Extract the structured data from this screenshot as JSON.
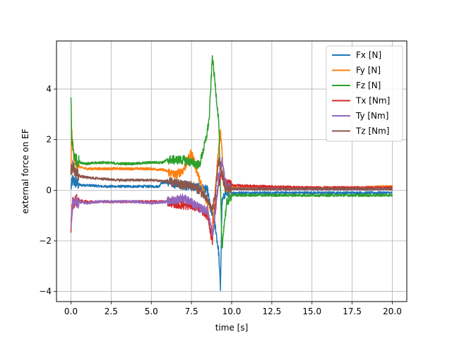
{
  "chart_data": {
    "type": "line",
    "xlabel": "time [s]",
    "ylabel": "external force on EF",
    "xlim": [
      -0.9,
      20.9
    ],
    "ylim": [
      -4.4,
      5.9
    ],
    "xticks": [
      0.0,
      2.5,
      5.0,
      7.5,
      10.0,
      12.5,
      15.0,
      17.5,
      20.0
    ],
    "xtick_labels": [
      "0.0",
      "2.5",
      "5.0",
      "7.5",
      "10.0",
      "12.5",
      "15.0",
      "17.5",
      "20.0"
    ],
    "yticks": [
      -4,
      -2,
      0,
      2,
      4
    ],
    "ytick_labels": [
      "−4",
      "−2",
      "0",
      "2",
      "4"
    ],
    "grid": true,
    "legend_position": "top-right",
    "series": [
      {
        "name": "Fx [N]",
        "color": "#1f77b4",
        "x": [
          0,
          0.1,
          0.3,
          0.6,
          1.0,
          2.0,
          3.0,
          4.0,
          5.0,
          5.5,
          5.6,
          6.0,
          7.0,
          8.0,
          8.5,
          8.7,
          9.0,
          9.2,
          9.3,
          9.4,
          9.6,
          10.0,
          12.0,
          15.0,
          18.0,
          20.0
        ],
        "y": [
          0.1,
          0.4,
          0.3,
          0.2,
          0.2,
          0.15,
          0.15,
          0.15,
          0.15,
          0.15,
          0.3,
          0.3,
          0.2,
          0.1,
          0.0,
          -0.8,
          -1.5,
          -2.5,
          -3.9,
          -0.5,
          -0.1,
          -0.1,
          -0.1,
          -0.1,
          -0.1,
          -0.1
        ]
      },
      {
        "name": "Fy [N]",
        "color": "#ff7f0e",
        "x": [
          0,
          0.05,
          0.1,
          0.2,
          0.4,
          0.6,
          1.0,
          2.0,
          3.0,
          4.0,
          5.0,
          5.8,
          6.5,
          7.0,
          7.5,
          8.0,
          8.5,
          8.7,
          8.9,
          9.1,
          9.3,
          9.4,
          9.5,
          9.7,
          10.0,
          12.0,
          15.0,
          18.0,
          20.0
        ],
        "y": [
          0.7,
          2.5,
          1.8,
          1.3,
          1.0,
          0.9,
          0.85,
          0.85,
          0.85,
          0.85,
          0.85,
          0.8,
          0.6,
          0.8,
          1.5,
          0.4,
          -0.5,
          -1.8,
          -0.8,
          1.0,
          2.3,
          1.5,
          0.3,
          0.1,
          0.1,
          0.1,
          0.1,
          0.1,
          0.15
        ]
      },
      {
        "name": "Fz [N]",
        "color": "#2ca02c",
        "x": [
          0,
          0.05,
          0.15,
          0.3,
          0.6,
          1.0,
          2.0,
          3.0,
          4.0,
          5.0,
          5.7,
          6.0,
          7.0,
          8.0,
          8.4,
          8.6,
          8.8,
          9.0,
          9.2,
          9.4,
          9.5,
          9.7,
          10.0,
          12.0,
          15.0,
          18.0,
          20.0
        ],
        "y": [
          3.6,
          2.0,
          1.5,
          1.2,
          1.1,
          1.05,
          1.1,
          1.05,
          1.05,
          1.1,
          1.1,
          1.2,
          1.2,
          1.0,
          2.0,
          2.8,
          5.3,
          4.0,
          2.7,
          -2.4,
          -1.5,
          -0.5,
          -0.2,
          -0.2,
          -0.2,
          -0.2,
          -0.2
        ]
      },
      {
        "name": "Tx [Nm]",
        "color": "#d62728",
        "x": [
          0,
          0.1,
          0.3,
          1.0,
          2.0,
          3.0,
          4.0,
          5.0,
          6.0,
          7.0,
          7.5,
          8.0,
          8.5,
          8.8,
          9.0,
          9.2,
          9.4,
          9.6,
          10.0,
          12.0,
          15.0,
          18.0,
          20.0
        ],
        "y": [
          -1.5,
          -0.5,
          -0.4,
          -0.45,
          -0.45,
          -0.45,
          -0.45,
          -0.45,
          -0.45,
          -0.6,
          -0.6,
          -0.7,
          -1.0,
          -2.0,
          -0.5,
          0.3,
          0.6,
          0.3,
          0.2,
          0.15,
          0.1,
          0.1,
          0.1
        ]
      },
      {
        "name": "Ty [Nm]",
        "color": "#9467bd",
        "x": [
          0,
          0.1,
          0.3,
          1.0,
          2.0,
          3.0,
          4.0,
          5.0,
          6.0,
          7.0,
          7.5,
          8.0,
          8.5,
          8.8,
          9.0,
          9.2,
          9.4,
          9.6,
          10.0,
          12.0,
          15.0,
          18.0,
          20.0
        ],
        "y": [
          -1.5,
          -0.6,
          -0.45,
          -0.5,
          -0.45,
          -0.45,
          -0.45,
          -0.5,
          -0.45,
          -0.3,
          -0.5,
          -0.7,
          -0.8,
          -1.8,
          -0.8,
          0.5,
          1.2,
          0.3,
          0.05,
          0.05,
          0.05,
          0.05,
          0.05
        ]
      },
      {
        "name": "Tz [Nm]",
        "color": "#8c564b",
        "x": [
          0,
          0.1,
          0.3,
          0.6,
          1.0,
          2.0,
          3.0,
          4.0,
          5.0,
          6.0,
          7.0,
          7.5,
          8.0,
          8.5,
          8.8,
          9.0,
          9.2,
          9.4,
          9.6,
          10.0,
          12.0,
          15.0,
          18.0,
          20.0
        ],
        "y": [
          0.7,
          1.0,
          0.7,
          0.55,
          0.5,
          0.45,
          0.4,
          0.4,
          0.4,
          0.35,
          0.2,
          0.2,
          0.0,
          -0.4,
          -0.8,
          0.0,
          1.2,
          0.6,
          0.1,
          0.05,
          0.05,
          0.05,
          0.05,
          0.05
        ]
      }
    ]
  }
}
